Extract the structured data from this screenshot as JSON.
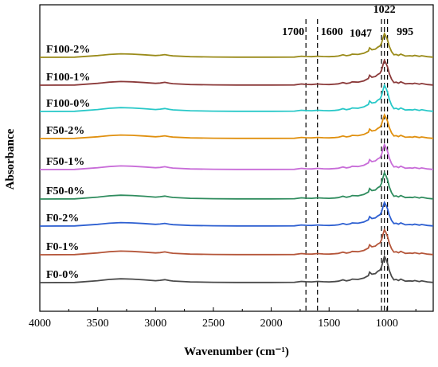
{
  "chart_data": {
    "type": "line",
    "title": "",
    "xlabel": "Wavenumber (cm⁻¹)",
    "ylabel": "Absorbance",
    "xlim": [
      4000,
      600
    ],
    "x_reversed": true,
    "x_ticks": [
      4000,
      3500,
      3000,
      2500,
      2000,
      1500,
      1000
    ],
    "y_ticks_shown": false,
    "legend_placement": "inline-left",
    "reference_lines": [
      {
        "x": 1700,
        "label": "1700",
        "style": "dashed"
      },
      {
        "x": 1600,
        "label": "1600",
        "style": "dashed"
      },
      {
        "x": 1047,
        "label": "1047",
        "style": "dashed"
      },
      {
        "x": 1022,
        "label": "1022",
        "style": "dashed"
      },
      {
        "x": 995,
        "label": "995",
        "style": "dashed"
      }
    ],
    "x": [
      4000,
      3700,
      3500,
      3400,
      3300,
      3200,
      3100,
      3000,
      2960,
      2920,
      2880,
      2850,
      2700,
      2500,
      2300,
      2000,
      1800,
      1740,
      1700,
      1650,
      1600,
      1550,
      1500,
      1450,
      1420,
      1400,
      1380,
      1350,
      1320,
      1300,
      1250,
      1200,
      1160,
      1150,
      1130,
      1100,
      1080,
      1060,
      1047,
      1035,
      1022,
      1010,
      995,
      980,
      960,
      940,
      920,
      900,
      880,
      860,
      840,
      800,
      780,
      760,
      720,
      700,
      650,
      600
    ],
    "series": [
      {
        "name": "F100-2%",
        "color": "#9a8b1a"
      },
      {
        "name": "F100-1%",
        "color": "#8b3a3a"
      },
      {
        "name": "F100-0%",
        "color": "#28c8c8"
      },
      {
        "name": "F50-2%",
        "color": "#e0900f"
      },
      {
        "name": "F50-1%",
        "color": "#c86cd8"
      },
      {
        "name": "F50-0%",
        "color": "#2f8c5e"
      },
      {
        "name": "F0-2%",
        "color": "#2d5fd1"
      },
      {
        "name": "F0-1%",
        "color": "#b5563a"
      },
      {
        "name": "F0-0%",
        "color": "#4a4a4a"
      }
    ],
    "profile": [
      0,
      0.05,
      0.55,
      0.9,
      1.1,
      1.0,
      0.8,
      0.55,
      0.65,
      0.85,
      0.6,
      0.45,
      0.2,
      0.1,
      0.05,
      0.05,
      0.08,
      0.35,
      0.25,
      0.2,
      0.35,
      0.25,
      0.2,
      0.3,
      0.4,
      0.6,
      0.8,
      0.5,
      0.7,
      1.0,
      0.9,
      1.3,
      2.0,
      3.0,
      2.4,
      2.6,
      3.2,
      3.6,
      4.5,
      6.0,
      7.5,
      6.8,
      5.5,
      3.5,
      1.8,
      0.8,
      0.9,
      0.6,
      1.0,
      0.7,
      0.4,
      0.5,
      0.4,
      0.6,
      0.3,
      0.5,
      0.2,
      0.05
    ]
  }
}
